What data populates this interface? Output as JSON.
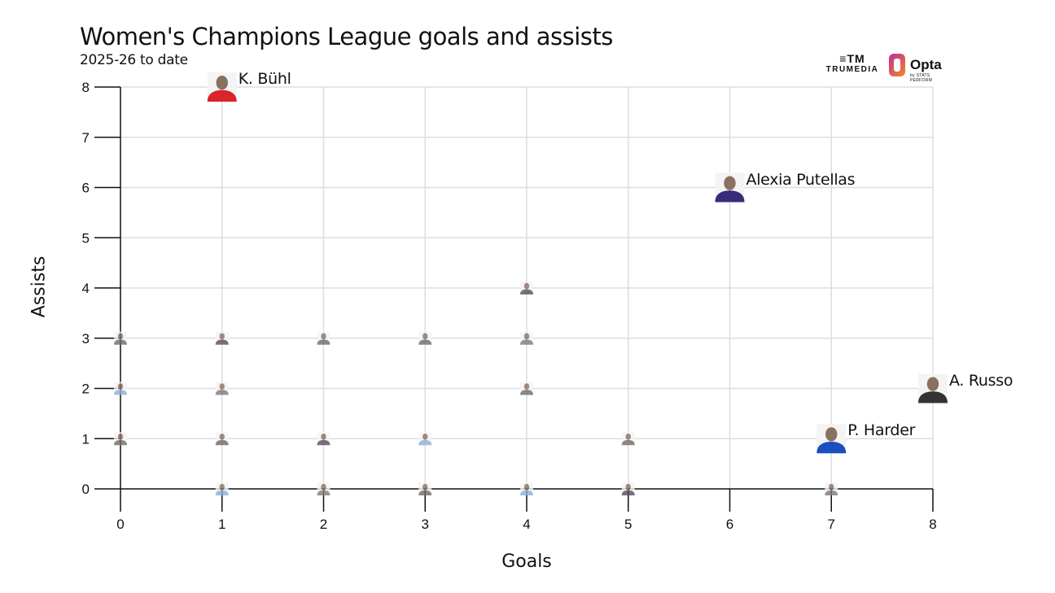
{
  "header": {
    "title": "Women's Champions League goals and assists",
    "subtitle": "2025-26 to date"
  },
  "logos": {
    "trumedia_mark": "≡TM",
    "trumedia_word": "TRUMEDIA",
    "opta_word": "Opta",
    "opta_sub": "by STATS PERFORM"
  },
  "chart_data": {
    "type": "scatter",
    "title": "Women's Champions League goals and assists",
    "subtitle": "2025-26 to date",
    "xlabel": "Goals",
    "ylabel": "Assists",
    "xlim": [
      0,
      8
    ],
    "ylim": [
      0,
      8
    ],
    "xticks": [
      0,
      1,
      2,
      3,
      4,
      5,
      6,
      7,
      8
    ],
    "yticks": [
      0,
      1,
      2,
      3,
      4,
      5,
      6,
      7,
      8
    ],
    "grid": true,
    "marker": "player-headshot",
    "labeled_points": [
      {
        "name": "K. Bühl",
        "goals": 1,
        "assists": 8
      },
      {
        "name": "Alexia Putellas",
        "goals": 6,
        "assists": 6
      },
      {
        "name": "A. Russo",
        "goals": 8,
        "assists": 2
      },
      {
        "name": "P. Harder",
        "goals": 7,
        "assists": 1
      }
    ],
    "unlabeled_points": [
      {
        "goals": 0,
        "assists": 3
      },
      {
        "goals": 0,
        "assists": 2
      },
      {
        "goals": 0,
        "assists": 1
      },
      {
        "goals": 1,
        "assists": 3
      },
      {
        "goals": 1,
        "assists": 2
      },
      {
        "goals": 1,
        "assists": 1
      },
      {
        "goals": 1,
        "assists": 0
      },
      {
        "goals": 2,
        "assists": 3
      },
      {
        "goals": 2,
        "assists": 1
      },
      {
        "goals": 2,
        "assists": 0
      },
      {
        "goals": 3,
        "assists": 3
      },
      {
        "goals": 3,
        "assists": 1
      },
      {
        "goals": 3,
        "assists": 0
      },
      {
        "goals": 4,
        "assists": 4
      },
      {
        "goals": 4,
        "assists": 3
      },
      {
        "goals": 4,
        "assists": 2
      },
      {
        "goals": 4,
        "assists": 0
      },
      {
        "goals": 5,
        "assists": 1
      },
      {
        "goals": 5,
        "assists": 0
      },
      {
        "goals": 7,
        "assists": 0
      }
    ]
  },
  "colors": {
    "grid": "#dddddd",
    "axis": "#111111",
    "silhouette": "#6b6b6b"
  }
}
